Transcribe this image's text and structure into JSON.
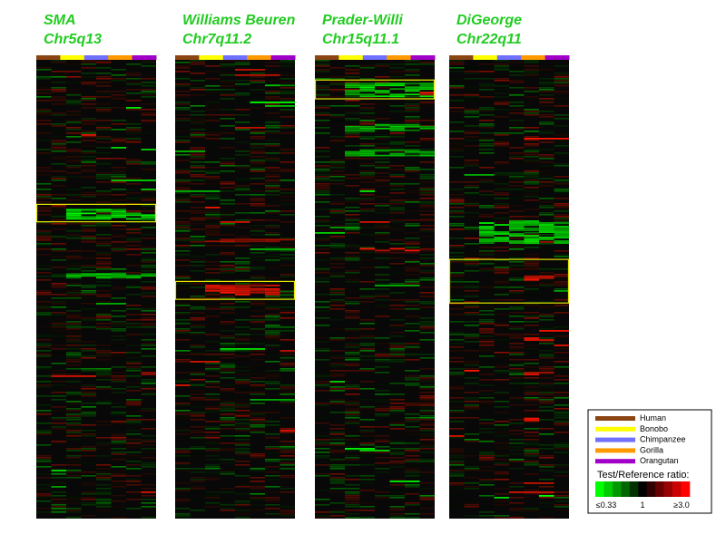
{
  "chart_data": {
    "type": "heatmap",
    "species": [
      {
        "name": "Human",
        "color": "#8b4513"
      },
      {
        "name": "Bonobo",
        "color": "#ffff00"
      },
      {
        "name": "Chimpanzee",
        "color": "#7070ff"
      },
      {
        "name": "Gorilla",
        "color": "#ff9900"
      },
      {
        "name": "Orangutan",
        "color": "#a000c8"
      }
    ],
    "panels": [
      {
        "name": "SMA",
        "region": "Chr5q13",
        "highlights": [
          {
            "row_start": 0.315,
            "row_end": 0.353
          }
        ],
        "bands": [
          {
            "row": 0.325,
            "row_span": 0.02,
            "value": -1.6,
            "cols": [
              0.25,
              1.0
            ]
          },
          {
            "row": 0.465,
            "row_span": 0.008,
            "value": -1.4,
            "cols": [
              0.25,
              1.0
            ]
          },
          {
            "row": 0.68,
            "row_span": 0.004,
            "value": 1.5,
            "cols": [
              0.85,
              1.0
            ]
          }
        ]
      },
      {
        "name": "Williams Beuren",
        "region": "Chr7q11.2",
        "highlights": [
          {
            "row_start": 0.483,
            "row_end": 0.522
          }
        ],
        "bands": [
          {
            "row": 0.49,
            "row_span": 0.02,
            "value": 1.6,
            "cols": [
              0.25,
              0.9
            ]
          },
          {
            "row": 0.503,
            "row_span": 0.015,
            "value": -1.0,
            "cols": [
              0.85,
              1.0
            ]
          },
          {
            "row": 0.39,
            "row_span": 0.004,
            "value": 1.2,
            "cols": [
              0.3,
              1.0
            ]
          },
          {
            "row": 0.05,
            "row_span": 0.004,
            "value": -1.3,
            "cols": [
              0.7,
              1.0
            ]
          }
        ]
      },
      {
        "name": "Prader-Willi",
        "region": "Chr15q11.1",
        "highlights": [
          {
            "row_start": 0.044,
            "row_end": 0.085
          }
        ],
        "bands": [
          {
            "row": 0.05,
            "row_span": 0.03,
            "value": -1.5,
            "cols": [
              0.25,
              1.0
            ]
          },
          {
            "row": 0.07,
            "row_span": 0.008,
            "value": 1.8,
            "cols": [
              0.85,
              1.0
            ]
          },
          {
            "row": 0.14,
            "row_span": 0.015,
            "value": -1.3,
            "cols": [
              0.25,
              1.0
            ]
          },
          {
            "row": 0.195,
            "row_span": 0.015,
            "value": -1.2,
            "cols": [
              0.25,
              1.0
            ]
          },
          {
            "row": 0.41,
            "row_span": 0.005,
            "value": 1.9,
            "cols": [
              0.25,
              0.85
            ]
          }
        ]
      },
      {
        "name": "DiGeorge",
        "region": "Chr22q11",
        "highlights": [
          {
            "row_start": 0.435,
            "row_end": 0.53
          }
        ],
        "bands": [
          {
            "row": 0.35,
            "row_span": 0.05,
            "value": -1.5,
            "cols": [
              0.25,
              1.0
            ]
          },
          {
            "row": 0.47,
            "row_span": 0.008,
            "value": 1.8,
            "cols": [
              0.65,
              0.85
            ]
          },
          {
            "row": 0.605,
            "row_span": 0.005,
            "value": 1.7,
            "cols": [
              0.65,
              0.85
            ]
          },
          {
            "row": 0.68,
            "row_span": 0.005,
            "value": 1.6,
            "cols": [
              0.65,
              0.85
            ]
          },
          {
            "row": 0.78,
            "row_span": 0.005,
            "value": 1.7,
            "cols": [
              0.65,
              0.85
            ]
          }
        ]
      }
    ],
    "legend": {
      "title": "Test/Reference ratio:",
      "scale": [
        {
          "label": "≤0.33",
          "value": 0.33
        },
        {
          "label": "1",
          "value": 1
        },
        {
          "label": "≥3.0",
          "value": 3.0
        }
      ],
      "colors": [
        "#00ff00",
        "#00cc00",
        "#009900",
        "#006600",
        "#003300",
        "#000000",
        "#330000",
        "#660000",
        "#990000",
        "#cc0000",
        "#ff0000"
      ],
      "placement": "bottom-right"
    }
  }
}
